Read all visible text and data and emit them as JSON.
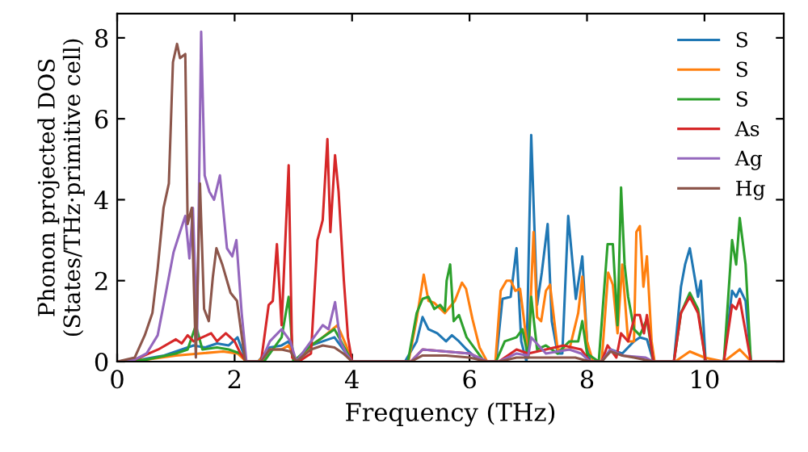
{
  "chart_data": {
    "type": "line",
    "xlabel": "Frequency (THz)",
    "ylabel": "Phonon projected DOS\n(States/THz·primitive cell)",
    "xlim": [
      0,
      11.35
    ],
    "ylim": [
      0,
      8.6
    ],
    "xticks": [
      0,
      2,
      4,
      6,
      8,
      10
    ],
    "yticks": [
      0,
      2,
      4,
      6,
      8
    ],
    "legend": "top right",
    "grid": false,
    "line_style": "solid",
    "marker": "none",
    "series": [
      {
        "name": "S",
        "color": "#1f77b4",
        "x": [
          0,
          0.4,
          0.8,
          1.1,
          1.3,
          1.5,
          1.7,
          1.9,
          2.05,
          2.2,
          2.4,
          2.6,
          2.8,
          2.92,
          3.05,
          3.3,
          3.5,
          3.7,
          3.85,
          4.0,
          4.9,
          5.1,
          5.2,
          5.3,
          5.45,
          5.6,
          5.7,
          5.82,
          5.95,
          6.1,
          6.3,
          6.45,
          6.56,
          6.7,
          6.8,
          6.88,
          6.97,
          7.05,
          7.15,
          7.23,
          7.33,
          7.4,
          7.5,
          7.58,
          7.68,
          7.81,
          7.92,
          8.0,
          8.05,
          8.25,
          8.4,
          8.6,
          8.8,
          8.9,
          9.02,
          9.13,
          9.48,
          9.6,
          9.67,
          9.75,
          9.82,
          9.89,
          9.94,
          10.02,
          10.33,
          10.47,
          10.54,
          10.6,
          10.7,
          10.79,
          11.35
        ],
        "values": [
          0,
          0.05,
          0.15,
          0.3,
          0.4,
          0.35,
          0.45,
          0.4,
          0.6,
          0,
          0,
          0.35,
          0.4,
          0.5,
          0,
          0.4,
          0.5,
          0.6,
          0.3,
          0,
          0,
          0.5,
          1.1,
          0.8,
          0.7,
          0.5,
          0.65,
          0.5,
          0.3,
          0.1,
          0,
          0,
          1.55,
          1.6,
          2.8,
          0.5,
          0,
          5.6,
          1.4,
          2.2,
          3.4,
          1.0,
          0.2,
          0.2,
          3.6,
          1.55,
          2.6,
          0.5,
          0,
          0,
          0.3,
          0.2,
          0.5,
          0.6,
          0.55,
          0,
          0,
          1.85,
          2.4,
          2.8,
          2.2,
          1.6,
          2.0,
          0,
          0,
          1.75,
          1.6,
          1.8,
          1.5,
          0,
          0
        ]
      },
      {
        "name": "S",
        "color": "#ff7f0e",
        "x": [
          0,
          0.5,
          1.0,
          1.4,
          1.8,
          2.05,
          2.2,
          2.4,
          2.6,
          2.8,
          2.92,
          3.05,
          3.3,
          3.5,
          3.75,
          3.9,
          4.0,
          4.96,
          5.1,
          5.22,
          5.3,
          5.4,
          5.58,
          5.75,
          5.87,
          5.94,
          6.05,
          6.17,
          6.3,
          6.44,
          6.53,
          6.63,
          6.7,
          6.78,
          6.86,
          6.93,
          7.0,
          7.09,
          7.15,
          7.22,
          7.3,
          7.37,
          7.5,
          7.7,
          7.85,
          7.92,
          8.0,
          8.1,
          8.25,
          8.36,
          8.44,
          8.52,
          8.6,
          8.7,
          8.8,
          8.84,
          8.9,
          8.96,
          9.02,
          9.1,
          9.15,
          9.5,
          9.75,
          10.0,
          10.33,
          10.6,
          10.8,
          11.35
        ],
        "values": [
          0,
          0.05,
          0.15,
          0.2,
          0.25,
          0.2,
          0,
          0,
          0.3,
          0.3,
          0.4,
          0,
          0.4,
          0.6,
          0.9,
          0.4,
          0,
          0,
          1.05,
          2.15,
          1.5,
          1.45,
          1.2,
          1.5,
          1.95,
          1.8,
          1.05,
          0.35,
          0,
          0,
          1.75,
          2.0,
          2.0,
          1.75,
          1.8,
          1.0,
          0.1,
          3.2,
          1.1,
          1.0,
          1.75,
          1.9,
          0.3,
          0.3,
          1.2,
          2.1,
          0.5,
          0,
          0,
          2.2,
          1.9,
          0.7,
          2.4,
          0.5,
          0.5,
          3.2,
          3.35,
          1.85,
          2.6,
          0.5,
          0,
          0,
          0.25,
          0.1,
          0,
          0.3,
          0,
          0
        ]
      },
      {
        "name": "S",
        "color": "#2ca02c",
        "x": [
          0,
          0.5,
          1.0,
          1.2,
          1.34,
          1.45,
          1.7,
          1.9,
          2.1,
          2.2,
          2.5,
          2.7,
          2.8,
          2.92,
          3.0,
          3.3,
          3.5,
          3.7,
          3.85,
          4.0,
          4.95,
          5.1,
          5.2,
          5.3,
          5.4,
          5.5,
          5.58,
          5.61,
          5.67,
          5.73,
          5.82,
          5.95,
          6.1,
          6.25,
          6.45,
          6.6,
          6.8,
          6.9,
          7.0,
          7.05,
          7.15,
          7.3,
          7.5,
          7.7,
          7.85,
          7.92,
          8.0,
          8.2,
          8.35,
          8.44,
          8.52,
          8.58,
          8.64,
          8.7,
          8.8,
          8.9,
          9.02,
          9.13,
          9.48,
          9.6,
          9.75,
          9.89,
          10.02,
          10.33,
          10.47,
          10.54,
          10.6,
          10.7,
          10.79,
          11.35
        ],
        "values": [
          0,
          0.05,
          0.2,
          0.3,
          0.9,
          0.3,
          0.35,
          0.3,
          0.2,
          0,
          0,
          0.4,
          0.6,
          1.6,
          0,
          0.4,
          0.6,
          0.8,
          0.4,
          0,
          0,
          1.2,
          1.55,
          1.6,
          1.3,
          1.4,
          1.25,
          2.0,
          2.4,
          1.0,
          1.15,
          0.6,
          0.3,
          0,
          0,
          0.5,
          0.6,
          0.8,
          0.1,
          1.6,
          0.3,
          0.4,
          0.2,
          0.5,
          0.5,
          1.0,
          0.2,
          0,
          2.9,
          2.9,
          0.9,
          4.3,
          2.4,
          1.6,
          0.8,
          0.65,
          1.05,
          0,
          0,
          1.2,
          1.7,
          1.3,
          0,
          0,
          3.0,
          2.4,
          3.55,
          2.4,
          0,
          0
        ]
      },
      {
        "name": "As",
        "color": "#d62728",
        "x": [
          0,
          0.3,
          0.7,
          1.0,
          1.1,
          1.2,
          1.3,
          1.45,
          1.6,
          1.7,
          1.85,
          2.0,
          2.1,
          2.2,
          2.45,
          2.58,
          2.65,
          2.72,
          2.8,
          2.92,
          2.98,
          3.09,
          3.3,
          3.41,
          3.5,
          3.58,
          3.63,
          3.71,
          3.77,
          3.86,
          3.93,
          4.0,
          5.0,
          5.2,
          5.6,
          6.0,
          6.3,
          6.5,
          6.8,
          7.0,
          7.3,
          7.6,
          7.9,
          8.05,
          8.25,
          8.35,
          8.5,
          8.58,
          8.7,
          8.82,
          8.9,
          8.97,
          9.02,
          9.13,
          9.48,
          9.6,
          9.75,
          9.89,
          10.02,
          10.33,
          10.47,
          10.54,
          10.6,
          10.79,
          11.35
        ],
        "values": [
          0,
          0.05,
          0.3,
          0.55,
          0.45,
          0.65,
          0.5,
          0.6,
          0.7,
          0.5,
          0.7,
          0.5,
          0.2,
          0,
          0,
          1.4,
          1.5,
          2.9,
          0.9,
          4.85,
          0.1,
          0,
          0.2,
          3.0,
          3.5,
          5.5,
          3.2,
          5.1,
          4.2,
          2.0,
          0.6,
          0,
          0,
          0.3,
          0.25,
          0.2,
          0,
          0,
          0.3,
          0.2,
          0.3,
          0.4,
          0.3,
          0,
          0,
          0.4,
          0.1,
          0.7,
          0.5,
          1.15,
          1.15,
          0.7,
          1.15,
          0,
          0,
          1.2,
          1.6,
          1.2,
          0,
          0,
          1.4,
          1.3,
          1.55,
          0,
          0
        ]
      },
      {
        "name": "Ag",
        "color": "#9467bd",
        "x": [
          0,
          0.3,
          0.5,
          0.69,
          0.83,
          0.96,
          1.07,
          1.16,
          1.23,
          1.29,
          1.36,
          1.43,
          1.49,
          1.57,
          1.65,
          1.75,
          1.87,
          1.96,
          2.03,
          2.12,
          2.2,
          2.45,
          2.6,
          2.8,
          2.95,
          3.05,
          3.3,
          3.5,
          3.6,
          3.71,
          3.8,
          3.9,
          4.0,
          5.0,
          5.2,
          5.6,
          6.0,
          6.3,
          6.5,
          6.8,
          7.0,
          7.05,
          7.3,
          7.7,
          7.9,
          8.05,
          8.25,
          8.4,
          8.6,
          9.0,
          9.13,
          11.35
        ],
        "values": [
          0,
          0.05,
          0.2,
          0.65,
          1.7,
          2.7,
          3.2,
          3.6,
          2.55,
          3.8,
          0.6,
          8.15,
          4.6,
          4.2,
          4.0,
          4.6,
          2.8,
          2.6,
          3.0,
          1.2,
          0,
          0,
          0.5,
          0.8,
          0.5,
          0,
          0.5,
          0.9,
          0.8,
          1.47,
          0.5,
          0.2,
          0,
          0,
          0.3,
          0.25,
          0.2,
          0,
          0,
          0.2,
          0.15,
          0.6,
          0.2,
          0.3,
          0.2,
          0,
          0,
          0.3,
          0.15,
          0.1,
          0,
          0
        ]
      },
      {
        "name": "Hg",
        "color": "#8c564b",
        "x": [
          0,
          0.3,
          0.47,
          0.6,
          0.69,
          0.79,
          0.88,
          0.95,
          1.02,
          1.07,
          1.16,
          1.2,
          1.27,
          1.34,
          1.41,
          1.48,
          1.56,
          1.63,
          1.69,
          1.79,
          1.93,
          2.04,
          2.18,
          2.45,
          2.6,
          2.8,
          2.95,
          3.05,
          3.3,
          3.5,
          3.7,
          3.85,
          4.0,
          5.0,
          5.2,
          5.6,
          6.0,
          6.3,
          6.5,
          6.8,
          7.0,
          7.3,
          7.8,
          8.05,
          8.25,
          8.4,
          8.6,
          8.8,
          9.13,
          11.35
        ],
        "values": [
          0,
          0.1,
          0.65,
          1.2,
          2.3,
          3.8,
          4.4,
          7.4,
          7.85,
          7.5,
          7.6,
          3.4,
          3.8,
          0.1,
          4.4,
          1.3,
          1.0,
          2.1,
          2.8,
          2.4,
          1.7,
          1.5,
          0,
          0,
          0.3,
          0.3,
          0.25,
          0,
          0.3,
          0.4,
          0.35,
          0.2,
          0,
          0,
          0.15,
          0.15,
          0.1,
          0,
          0,
          0.1,
          0.1,
          0.1,
          0.1,
          0,
          0,
          0.25,
          0.15,
          0.1,
          0,
          0
        ]
      }
    ]
  }
}
